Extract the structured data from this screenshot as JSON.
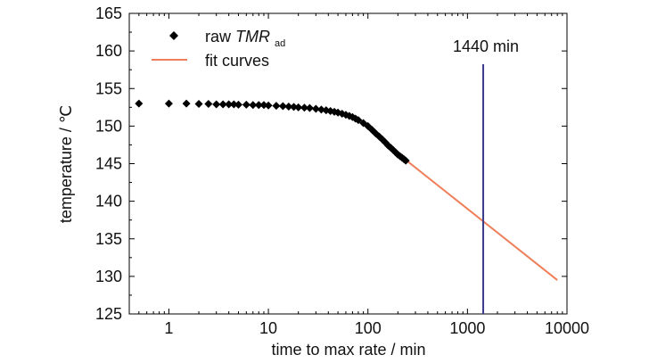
{
  "chart_data": {
    "type": "scatter",
    "xlabel": "time to max rate / min",
    "ylabel": "temperature / ℃",
    "x_scale": "log",
    "xlim": [
      0.4,
      10000
    ],
    "ylim": [
      125,
      165
    ],
    "x_ticks": [
      1,
      10,
      100,
      1000,
      10000
    ],
    "x_tick_labels": [
      "1",
      "10",
      "100",
      "1000",
      "10000"
    ],
    "y_ticks": [
      125,
      130,
      135,
      140,
      145,
      150,
      155,
      160,
      165
    ],
    "y_tick_labels": [
      "125",
      "130",
      "135",
      "140",
      "145",
      "150",
      "155",
      "160",
      "165"
    ],
    "grid": false,
    "legend_position": "top-left",
    "legend": {
      "raw_prefix": "raw ",
      "raw_italic": "TMR",
      "raw_sub": "ad",
      "fit": "fit curves"
    },
    "series": [
      {
        "name": "raw TMRad",
        "marker": "diamond",
        "color": "#000000",
        "points": [
          [
            0.5,
            153.0
          ],
          [
            1.0,
            153.0
          ],
          [
            1.5,
            153.0
          ],
          [
            2.0,
            152.95
          ],
          [
            2.5,
            152.95
          ],
          [
            3.0,
            152.9
          ],
          [
            3.5,
            152.9
          ],
          [
            4.0,
            152.9
          ],
          [
            4.5,
            152.9
          ],
          [
            5.0,
            152.85
          ],
          [
            6.0,
            152.85
          ],
          [
            7.0,
            152.8
          ],
          [
            8.0,
            152.8
          ],
          [
            9.0,
            152.8
          ],
          [
            10.0,
            152.75
          ],
          [
            12.0,
            152.7
          ],
          [
            14.0,
            152.65
          ],
          [
            16.0,
            152.6
          ],
          [
            18.0,
            152.55
          ],
          [
            20.0,
            152.5
          ],
          [
            23.0,
            152.45
          ],
          [
            26.0,
            152.4
          ],
          [
            30.0,
            152.3
          ],
          [
            34.0,
            152.2
          ],
          [
            38.0,
            152.1
          ],
          [
            42.0,
            152.0
          ],
          [
            46.0,
            151.9
          ],
          [
            50.0,
            151.8
          ],
          [
            55.0,
            151.65
          ],
          [
            60.0,
            151.5
          ],
          [
            65.0,
            151.35
          ],
          [
            70.0,
            151.2
          ],
          [
            75.0,
            151.0
          ],
          [
            80.0,
            150.8
          ],
          [
            90.0,
            150.4
          ],
          [
            100.0,
            150.0
          ],
          [
            110.0,
            149.5
          ],
          [
            120.0,
            149.0
          ],
          [
            130.0,
            148.6
          ],
          [
            140.0,
            148.2
          ],
          [
            150.0,
            147.8
          ],
          [
            160.0,
            147.4
          ],
          [
            170.0,
            147.1
          ],
          [
            180.0,
            146.8
          ],
          [
            190.0,
            146.5
          ],
          [
            200.0,
            146.2
          ],
          [
            210.0,
            146.0
          ],
          [
            220.0,
            145.8
          ],
          [
            230.0,
            145.6
          ],
          [
            240.0,
            145.4
          ]
        ]
      },
      {
        "name": "fit curves",
        "line": true,
        "color": "#ef7f5a",
        "points": [
          [
            240,
            145.5
          ],
          [
            8000,
            129.5
          ]
        ]
      }
    ],
    "annotations": [
      {
        "type": "vline",
        "x": 1440,
        "color": "#3a3a8c",
        "label": "1440 min"
      }
    ]
  }
}
